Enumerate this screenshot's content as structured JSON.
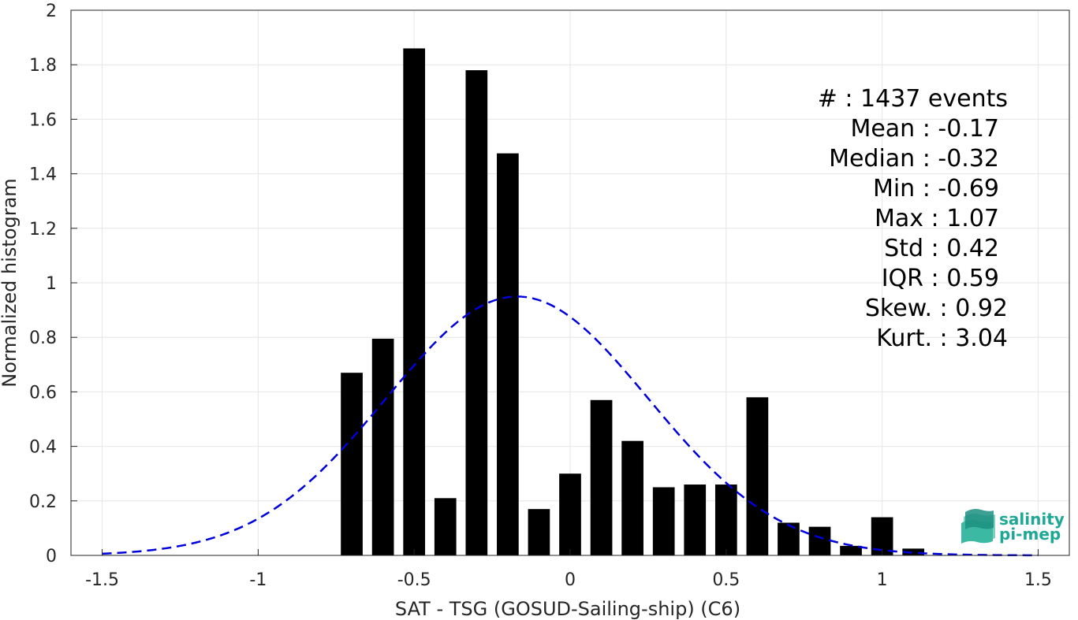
{
  "chart_data": {
    "type": "bar",
    "xlabel": "SAT - TSG (GOSUD-Sailing-ship) (C6)",
    "ylabel": "Normalized histogram",
    "xlim": [
      -1.6,
      1.6
    ],
    "ylim": [
      0,
      2
    ],
    "xticks": [
      -1.5,
      -1,
      -0.5,
      0,
      0.5,
      1,
      1.5
    ],
    "xtick_labels": [
      "-1.5",
      "-1",
      "-0.5",
      "0",
      "0.5",
      "1",
      "1.5"
    ],
    "yticks": [
      0,
      0.2,
      0.4,
      0.6,
      0.8,
      1,
      1.2,
      1.4,
      1.6,
      1.8,
      2
    ],
    "ytick_labels": [
      "0",
      "0.2",
      "0.4",
      "0.6",
      "0.8",
      "1",
      "1.2",
      "1.4",
      "1.6",
      "1.8",
      "2"
    ],
    "grid": true,
    "bar_width": 0.07,
    "bins": [
      {
        "x": -0.7,
        "value": 0.67
      },
      {
        "x": -0.6,
        "value": 0.795
      },
      {
        "x": -0.5,
        "value": 1.86
      },
      {
        "x": -0.4,
        "value": 0.21
      },
      {
        "x": -0.3,
        "value": 1.78
      },
      {
        "x": -0.2,
        "value": 1.475
      },
      {
        "x": -0.1,
        "value": 0.17
      },
      {
        "x": 0.0,
        "value": 0.3
      },
      {
        "x": 0.1,
        "value": 0.57
      },
      {
        "x": 0.2,
        "value": 0.42
      },
      {
        "x": 0.3,
        "value": 0.25
      },
      {
        "x": 0.4,
        "value": 0.26
      },
      {
        "x": 0.5,
        "value": 0.26
      },
      {
        "x": 0.6,
        "value": 0.58
      },
      {
        "x": 0.7,
        "value": 0.12
      },
      {
        "x": 0.8,
        "value": 0.105
      },
      {
        "x": 0.9,
        "value": 0.035
      },
      {
        "x": 1.0,
        "value": 0.14
      },
      {
        "x": 1.1,
        "value": 0.025
      }
    ],
    "fit_curve": {
      "style": "dashed",
      "color": "#0000dd",
      "mean": -0.17,
      "std": 0.42,
      "x_range": [
        -1.5,
        1.5
      ]
    },
    "bar_color": "#000000"
  },
  "stats": {
    "count": "#  : 1437 events",
    "mean": "Mean : -0.17",
    "median": "Median : -0.32",
    "min": "Min : -0.69",
    "max": "Max : 1.07",
    "std": "Std : 0.42",
    "iqr": "IQR : 0.59",
    "skew": "Skew. : 0.92",
    "kurt": "Kurt. : 3.04"
  },
  "logo": {
    "line1": "salinity",
    "line2": "pi-mep",
    "color": "#1fa896"
  }
}
